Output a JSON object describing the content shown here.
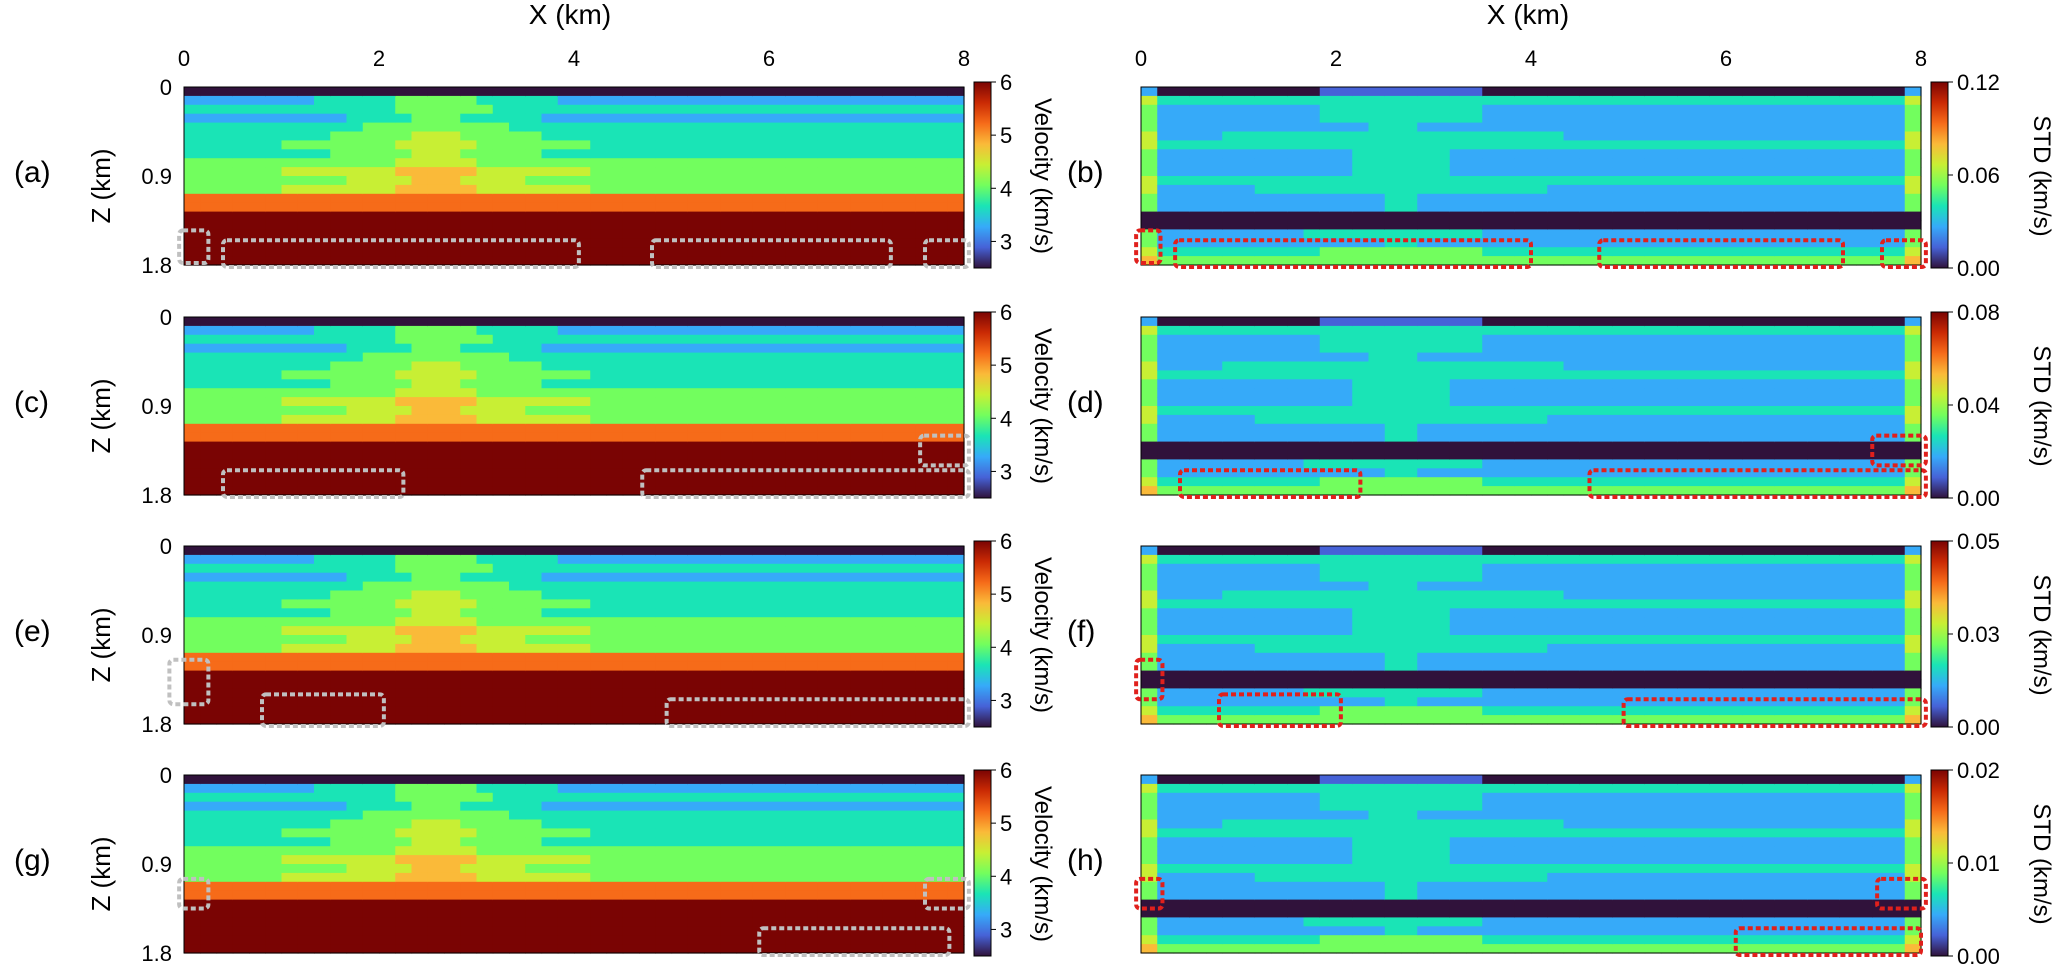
{
  "figure": {
    "x_axis_label": "X (km)",
    "y_axis_label": "Z (km)",
    "x_ticks": [
      "0",
      "2",
      "4",
      "6",
      "8"
    ],
    "y_ticks": [
      "0",
      "0.9",
      "1.8"
    ]
  },
  "colors": {
    "colormap": [
      "#30123b",
      "#4662d7",
      "#36aaf9",
      "#1ae4b6",
      "#72fe5e",
      "#c8ef34",
      "#faba39",
      "#f66b19",
      "#ca2a04",
      "#7a0403"
    ],
    "grey_box": "#c0c0c0",
    "red_box": "#e0201c"
  },
  "chart_data": [
    {
      "id": "a",
      "panel_label": "(a)",
      "type": "heatmap",
      "quantity": "velocity",
      "colorbar_label": "Velocity (km/s)",
      "colorbar_ticks": [
        "6",
        "5",
        "4",
        "3"
      ],
      "range": [
        2.5,
        6
      ],
      "xlim": [
        0,
        8
      ],
      "ylim": [
        0,
        1.8
      ],
      "highlight_boxes": [
        [
          -0.05,
          1.45,
          0.25,
          1.78
        ],
        [
          0.4,
          1.55,
          4.05,
          1.82
        ],
        [
          4.8,
          1.55,
          7.25,
          1.82
        ],
        [
          7.6,
          1.55,
          8.05,
          1.82
        ]
      ]
    },
    {
      "id": "b",
      "panel_label": "(b)",
      "type": "heatmap",
      "quantity": "std",
      "colorbar_label": "STD (km/s)",
      "colorbar_ticks": [
        "0.12",
        "0.06",
        "0.00"
      ],
      "range": [
        0,
        0.12
      ],
      "xlim": [
        0,
        8
      ],
      "ylim": [
        0,
        1.8
      ],
      "highlight_boxes": [
        [
          -0.05,
          1.45,
          0.2,
          1.78
        ],
        [
          0.35,
          1.55,
          4.0,
          1.82
        ],
        [
          4.7,
          1.55,
          7.2,
          1.82
        ],
        [
          7.6,
          1.55,
          8.05,
          1.82
        ]
      ]
    },
    {
      "id": "c",
      "panel_label": "(c)",
      "type": "heatmap",
      "quantity": "velocity",
      "colorbar_label": "Velocity (km/s)",
      "colorbar_ticks": [
        "6",
        "5",
        "4",
        "3"
      ],
      "range": [
        2.5,
        6
      ],
      "xlim": [
        0,
        8
      ],
      "ylim": [
        0,
        1.8
      ],
      "highlight_boxes": [
        [
          0.4,
          1.55,
          2.25,
          1.82
        ],
        [
          4.7,
          1.55,
          8.05,
          1.82
        ],
        [
          7.55,
          1.2,
          8.05,
          1.5
        ]
      ]
    },
    {
      "id": "d",
      "panel_label": "(d)",
      "type": "heatmap",
      "quantity": "std",
      "colorbar_label": "STD (km/s)",
      "colorbar_ticks": [
        "0.08",
        "0.04",
        "0.00"
      ],
      "range": [
        0,
        0.08
      ],
      "xlim": [
        0,
        8
      ],
      "ylim": [
        0,
        1.8
      ],
      "highlight_boxes": [
        [
          0.4,
          1.55,
          2.25,
          1.82
        ],
        [
          4.6,
          1.55,
          8.05,
          1.82
        ],
        [
          7.5,
          1.2,
          8.05,
          1.5
        ]
      ]
    },
    {
      "id": "e",
      "panel_label": "(e)",
      "type": "heatmap",
      "quantity": "velocity",
      "colorbar_label": "Velocity (km/s)",
      "colorbar_ticks": [
        "6",
        "5",
        "4",
        "3"
      ],
      "range": [
        2.5,
        6
      ],
      "xlim": [
        0,
        8
      ],
      "ylim": [
        0,
        1.8
      ],
      "highlight_boxes": [
        [
          -0.15,
          1.15,
          0.25,
          1.6
        ],
        [
          0.8,
          1.5,
          2.05,
          1.82
        ],
        [
          4.95,
          1.55,
          8.05,
          1.82
        ]
      ]
    },
    {
      "id": "f",
      "panel_label": "(f)",
      "type": "heatmap",
      "quantity": "std",
      "colorbar_label": "STD (km/s)",
      "colorbar_ticks": [
        "0.05",
        "0.03",
        "0.00"
      ],
      "range": [
        0,
        0.05
      ],
      "xlim": [
        0,
        8
      ],
      "ylim": [
        0,
        1.8
      ],
      "highlight_boxes": [
        [
          -0.05,
          1.15,
          0.22,
          1.55
        ],
        [
          0.8,
          1.5,
          2.05,
          1.82
        ],
        [
          4.95,
          1.55,
          8.05,
          1.82
        ]
      ]
    },
    {
      "id": "g",
      "panel_label": "(g)",
      "type": "heatmap",
      "quantity": "velocity",
      "colorbar_label": "Velocity (km/s)",
      "colorbar_ticks": [
        "6",
        "5",
        "4",
        "3"
      ],
      "range": [
        2.5,
        6
      ],
      "xlim": [
        0,
        8
      ],
      "ylim": [
        0,
        1.8
      ],
      "highlight_boxes": [
        [
          -0.05,
          1.05,
          0.25,
          1.35
        ],
        [
          5.9,
          1.55,
          7.85,
          1.82
        ],
        [
          7.6,
          1.05,
          8.05,
          1.35
        ]
      ]
    },
    {
      "id": "h",
      "panel_label": "(h)",
      "type": "heatmap",
      "quantity": "std",
      "colorbar_label": "STD (km/s)",
      "colorbar_ticks": [
        "0.02",
        "0.01",
        "0.00"
      ],
      "range": [
        0,
        0.02
      ],
      "xlim": [
        0,
        8
      ],
      "ylim": [
        0,
        1.8
      ],
      "highlight_boxes": [
        [
          -0.05,
          1.05,
          0.22,
          1.35
        ],
        [
          6.1,
          1.55,
          8.0,
          1.82
        ],
        [
          7.55,
          1.05,
          8.05,
          1.35
        ]
      ]
    }
  ]
}
